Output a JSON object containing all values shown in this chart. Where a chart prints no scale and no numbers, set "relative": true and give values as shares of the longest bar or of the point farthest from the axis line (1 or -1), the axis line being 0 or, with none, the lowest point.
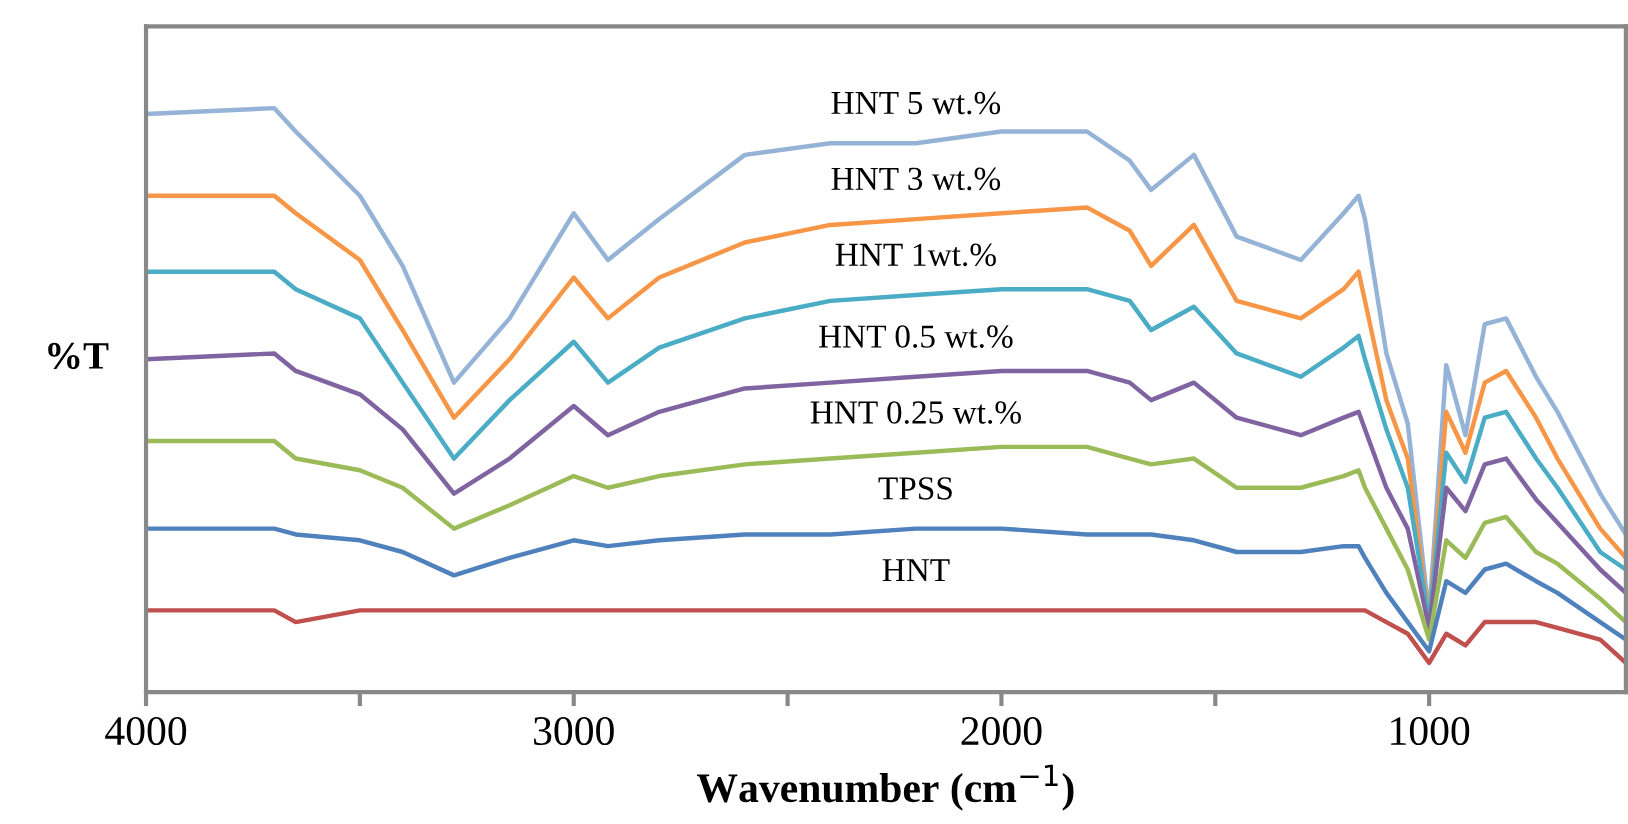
{
  "chart_data": {
    "type": "line",
    "relative": true,
    "xlabel": "Wavenumber (cm$^{−1}$)",
    "ylabel": "%T",
    "x": [
      4000,
      3700,
      3650,
      3500,
      3400,
      3280,
      3150,
      3000,
      2920,
      2800,
      2600,
      2400,
      2200,
      2000,
      1800,
      1700,
      1650,
      1550,
      1450,
      1300,
      1200,
      1165,
      1150,
      1100,
      1050,
      1000,
      960,
      915,
      870,
      820,
      750,
      700,
      600,
      540
    ],
    "xlim": [
      4000,
      540
    ],
    "xticks": [
      4000,
      {
        "value": 3500,
        "label": null
      },
      3000,
      {
        "value": 2500,
        "label": null
      },
      2000,
      {
        "value": 1500,
        "label": null
      },
      1000
    ],
    "grid": false,
    "legend": false,
    "marker": "none",
    "line_style": "solid",
    "series": [
      {
        "name": "HNT 5 wt.%",
        "color": "#95b3d7",
        "values": [
          0.99,
          1.0,
          0.96,
          0.85,
          0.73,
          0.53,
          0.64,
          0.82,
          0.74,
          0.81,
          0.92,
          0.94,
          0.94,
          0.96,
          0.96,
          0.91,
          0.86,
          0.92,
          0.78,
          0.74,
          0.82,
          0.85,
          0.81,
          0.58,
          0.46,
          0.13,
          0.56,
          0.44,
          0.63,
          0.64,
          0.54,
          0.48,
          0.34,
          0.27
        ]
      },
      {
        "name": "HNT 3 wt.%",
        "color": "#f79646",
        "values": [
          0.85,
          0.85,
          0.82,
          0.74,
          0.62,
          0.47,
          0.57,
          0.71,
          0.64,
          0.71,
          0.77,
          0.8,
          0.81,
          0.82,
          0.83,
          0.79,
          0.73,
          0.8,
          0.67,
          0.64,
          0.69,
          0.72,
          0.67,
          0.5,
          0.4,
          0.12,
          0.48,
          0.41,
          0.53,
          0.55,
          0.47,
          0.4,
          0.28,
          0.23
        ]
      },
      {
        "name": "HNT 1wt.%",
        "color": "#4bacc6",
        "values": [
          0.72,
          0.72,
          0.69,
          0.64,
          0.53,
          0.4,
          0.5,
          0.6,
          0.53,
          0.59,
          0.64,
          0.67,
          0.68,
          0.69,
          0.69,
          0.67,
          0.62,
          0.66,
          0.58,
          0.54,
          0.59,
          0.61,
          0.57,
          0.45,
          0.35,
          0.12,
          0.41,
          0.36,
          0.47,
          0.48,
          0.4,
          0.35,
          0.24,
          0.21
        ]
      },
      {
        "name": "HNT 0.5 wt.%",
        "color": "#8064a2",
        "values": [
          0.57,
          0.58,
          0.55,
          0.51,
          0.45,
          0.34,
          0.4,
          0.49,
          0.44,
          0.48,
          0.52,
          0.53,
          0.54,
          0.55,
          0.55,
          0.53,
          0.5,
          0.53,
          0.47,
          0.44,
          0.47,
          0.48,
          0.45,
          0.35,
          0.28,
          0.11,
          0.35,
          0.31,
          0.39,
          0.4,
          0.33,
          0.29,
          0.21,
          0.17
        ]
      },
      {
        "name": "HNT 0.25 wt.%",
        "color": "#9bbb59",
        "values": [
          0.43,
          0.43,
          0.4,
          0.38,
          0.35,
          0.28,
          0.32,
          0.37,
          0.35,
          0.37,
          0.39,
          0.4,
          0.41,
          0.42,
          0.42,
          0.4,
          0.39,
          0.4,
          0.35,
          0.35,
          0.37,
          0.38,
          0.35,
          0.28,
          0.21,
          0.09,
          0.26,
          0.23,
          0.29,
          0.3,
          0.24,
          0.22,
          0.16,
          0.12
        ]
      },
      {
        "name": "TPSS",
        "color": "#4f81bd",
        "values": [
          0.28,
          0.28,
          0.27,
          0.26,
          0.24,
          0.2,
          0.23,
          0.26,
          0.25,
          0.26,
          0.27,
          0.27,
          0.28,
          0.28,
          0.27,
          0.27,
          0.27,
          0.26,
          0.24,
          0.24,
          0.25,
          0.25,
          0.23,
          0.17,
          0.12,
          0.07,
          0.19,
          0.17,
          0.21,
          0.22,
          0.19,
          0.17,
          0.12,
          0.09
        ]
      },
      {
        "name": "HNT",
        "color": "#c0504d",
        "values": [
          0.14,
          0.14,
          0.12,
          0.14,
          0.14,
          0.14,
          0.14,
          0.14,
          0.14,
          0.14,
          0.14,
          0.14,
          0.14,
          0.14,
          0.14,
          0.14,
          0.14,
          0.14,
          0.14,
          0.14,
          0.14,
          0.14,
          0.14,
          0.12,
          0.1,
          0.05,
          0.1,
          0.08,
          0.12,
          0.12,
          0.12,
          0.11,
          0.09,
          0.05
        ]
      }
    ]
  }
}
